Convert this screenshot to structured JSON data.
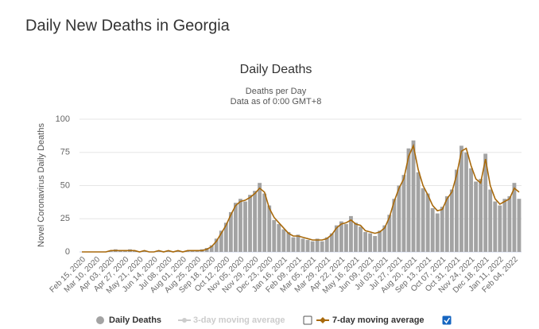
{
  "page_title": "Daily New Deaths in Georgia",
  "chart_data": {
    "type": "bar",
    "title": "Daily Deaths",
    "subtitle": [
      "Deaths per Day",
      "Data as of 0:00 GMT+8"
    ],
    "y_label": "Novel Coronavirus Daily Deaths",
    "ylim": [
      0,
      100
    ],
    "yticks": [
      0,
      25,
      50,
      75,
      100
    ],
    "grid": true,
    "categories": [
      "Feb 15, 2020",
      null,
      null,
      "Mar 10, 2020",
      null,
      null,
      "Apr 03, 2020",
      null,
      null,
      "Apr 27, 2020",
      null,
      null,
      "May 21, 2020",
      null,
      null,
      "Jun 14, 2020",
      null,
      null,
      "Jul 08, 2020",
      null,
      null,
      "Aug 01, 2020",
      null,
      null,
      "Aug 25, 2020",
      null,
      null,
      "Sep 18, 2020",
      null,
      null,
      "Oct 12, 2020",
      null,
      null,
      "Nov 05, 2020",
      null,
      null,
      "Nov 29, 2020",
      null,
      null,
      "Dec 23, 2020",
      null,
      null,
      "Jan 16, 2021",
      null,
      null,
      "Feb 09, 2021",
      null,
      null,
      "Mar 05, 2021",
      null,
      null,
      "Mar 29, 2021",
      null,
      null,
      "Apr 22, 2021",
      null,
      null,
      "May 16, 2021",
      null,
      null,
      "Jun 09, 2021",
      null,
      null,
      "Jul 03, 2021",
      null,
      null,
      "Jul 27, 2021",
      null,
      null,
      "Aug 20, 2021",
      null,
      null,
      "Sep 13, 2021",
      null,
      null,
      "Oct 07, 2021",
      null,
      null,
      "Oct 31, 2021",
      null,
      null,
      "Nov 24, 2021",
      null,
      null,
      "Dec 18, 2021",
      null,
      null,
      "Jan 11, 2022",
      null,
      null,
      "Feb 04, 2022",
      null
    ],
    "series": [
      {
        "name": "Daily Deaths",
        "color": "#a3a3a3",
        "values": [
          0,
          0,
          0,
          0,
          0,
          0,
          1,
          2,
          1,
          1,
          2,
          1,
          0,
          1,
          0,
          0,
          1,
          0,
          1,
          0,
          1,
          0,
          1,
          1,
          1,
          2,
          3,
          5,
          10,
          16,
          22,
          30,
          37,
          40,
          38,
          43,
          46,
          52,
          44,
          35,
          24,
          21,
          17,
          15,
          11,
          13,
          10,
          9,
          8,
          10,
          8,
          11,
          14,
          20,
          23,
          21,
          27,
          22,
          19,
          15,
          14,
          12,
          16,
          20,
          28,
          40,
          50,
          58,
          78,
          84,
          60,
          48,
          44,
          33,
          29,
          34,
          42,
          47,
          62,
          80,
          75,
          63,
          53,
          55,
          74,
          47,
          38,
          35,
          40,
          42,
          52,
          40
        ]
      },
      {
        "name": "7-day moving average",
        "color": "#a8690b",
        "checked": true,
        "values": [
          0,
          0,
          0,
          0,
          0,
          0,
          1,
          1,
          1,
          1,
          1,
          1,
          0,
          1,
          0,
          0,
          1,
          0,
          1,
          0,
          1,
          0,
          1,
          1,
          1,
          1,
          2,
          4,
          8,
          14,
          20,
          28,
          35,
          38,
          39,
          41,
          44,
          48,
          45,
          33,
          26,
          22,
          18,
          14,
          12,
          12,
          11,
          10,
          9,
          9,
          9,
          10,
          13,
          18,
          21,
          22,
          24,
          21,
          20,
          16,
          15,
          14,
          15,
          18,
          26,
          38,
          48,
          55,
          72,
          80,
          62,
          50,
          43,
          35,
          31,
          32,
          40,
          45,
          58,
          76,
          78,
          65,
          55,
          52,
          70,
          50,
          40,
          36,
          38,
          40,
          48,
          45
        ]
      }
    ],
    "hidden_series": [
      {
        "name": "3-day moving average",
        "color": "#cccccc",
        "checked": false
      }
    ]
  }
}
